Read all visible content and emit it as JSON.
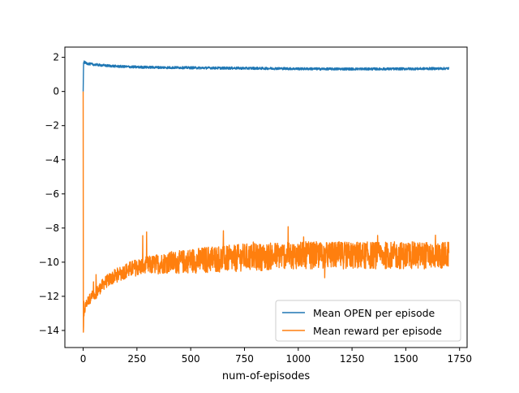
{
  "chart_data": {
    "type": "line",
    "xlabel": "num-of-episodes",
    "ylabel": "",
    "title": "",
    "xlim": [
      -85,
      1785
    ],
    "ylim": [
      -15,
      2.6
    ],
    "x_ticks": [
      0,
      250,
      500,
      750,
      1000,
      1250,
      1500,
      1750
    ],
    "y_ticks": [
      2,
      0,
      -2,
      -4,
      -6,
      -8,
      -10,
      -12,
      -14
    ],
    "x_tick_labels": [
      "0",
      "250",
      "500",
      "750",
      "1000",
      "1250",
      "1500",
      "1750"
    ],
    "y_tick_labels": [
      "2",
      "0",
      "−2",
      "−4",
      "−6",
      "−8",
      "−10",
      "−12",
      "−14"
    ],
    "grid": false,
    "legend_position": "lower-right",
    "series": [
      {
        "name": "Mean OPEN per episode",
        "color": "#1f77b4",
        "x": [
          0,
          2,
          5,
          10,
          25,
          50,
          100,
          150,
          200,
          250,
          300,
          350,
          400,
          450,
          500,
          550,
          600,
          650,
          700,
          750,
          800,
          850,
          900,
          950,
          1000,
          1050,
          1100,
          1150,
          1200,
          1250,
          1300,
          1350,
          1400,
          1450,
          1500,
          1550,
          1600,
          1650,
          1700
        ],
        "y": [
          0.0,
          1.75,
          1.72,
          1.68,
          1.62,
          1.58,
          1.52,
          1.48,
          1.45,
          1.43,
          1.42,
          1.41,
          1.4,
          1.4,
          1.39,
          1.38,
          1.38,
          1.37,
          1.37,
          1.36,
          1.36,
          1.35,
          1.35,
          1.34,
          1.33,
          1.33,
          1.32,
          1.32,
          1.32,
          1.32,
          1.32,
          1.32,
          1.32,
          1.32,
          1.33,
          1.33,
          1.34,
          1.34,
          1.35
        ],
        "noise": 0.07
      },
      {
        "name": "Mean reward per episode",
        "color": "#ff7f0e",
        "x": [
          0,
          1,
          3,
          5,
          10,
          20,
          40,
          60,
          80,
          100,
          150,
          200,
          250,
          300,
          350,
          400,
          450,
          500,
          550,
          600,
          650,
          700,
          750,
          800,
          850,
          900,
          950,
          1000,
          1050,
          1100,
          1150,
          1200,
          1250,
          1300,
          1350,
          1400,
          1450,
          1500,
          1550,
          1600,
          1650,
          1700
        ],
        "y": [
          0.0,
          -14.1,
          -13.5,
          -13.0,
          -12.6,
          -12.3,
          -12.0,
          -11.8,
          -11.5,
          -11.2,
          -10.8,
          -10.5,
          -10.3,
          -10.2,
          -10.1,
          -10.0,
          -10.0,
          -9.9,
          -9.9,
          -9.8,
          -9.8,
          -9.8,
          -9.7,
          -9.7,
          -9.7,
          -9.6,
          -9.6,
          -9.6,
          -9.6,
          -9.6,
          -9.6,
          -9.6,
          -9.6,
          -9.6,
          -9.6,
          -9.6,
          -9.6,
          -9.6,
          -9.6,
          -9.6,
          -9.6,
          -9.6
        ],
        "noise": 0.8
      }
    ]
  }
}
